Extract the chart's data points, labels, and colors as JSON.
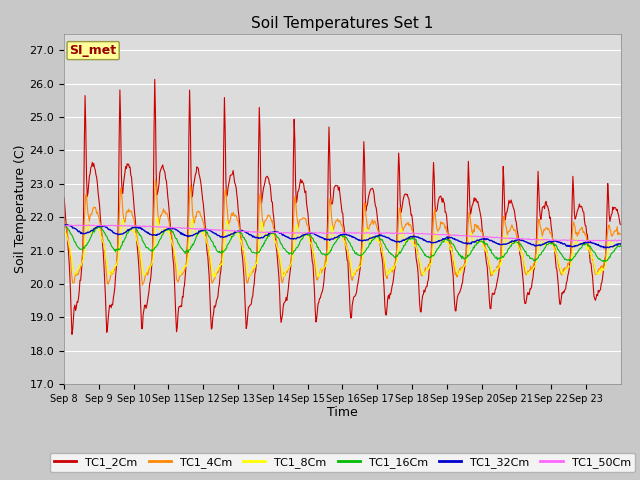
{
  "title": "Soil Temperatures Set 1",
  "xlabel": "Time",
  "ylabel": "Soil Temperature (C)",
  "ylim": [
    17.0,
    27.5
  ],
  "yticks": [
    17.0,
    18.0,
    19.0,
    20.0,
    21.0,
    22.0,
    23.0,
    24.0,
    25.0,
    26.0,
    27.0
  ],
  "fig_bg": "#c8c8c8",
  "plot_bg": "#dcdcdc",
  "series": {
    "TC1_2Cm": {
      "color": "#cc0000",
      "lw": 0.8
    },
    "TC1_4Cm": {
      "color": "#ff8800",
      "lw": 0.8
    },
    "TC1_8Cm": {
      "color": "#ffff00",
      "lw": 0.8
    },
    "TC1_16Cm": {
      "color": "#00bb00",
      "lw": 0.8
    },
    "TC1_32Cm": {
      "color": "#0000cc",
      "lw": 1.0
    },
    "TC1_50Cm": {
      "color": "#ff66ff",
      "lw": 0.8
    }
  },
  "annotation": {
    "text": "SI_met",
    "fontsize": 9,
    "color": "#990000",
    "bg": "#ffff99",
    "border": "#999944"
  },
  "xtick_labels": [
    "Sep 8",
    "Sep 9",
    "Sep 10",
    "Sep 11",
    "Sep 12",
    "Sep 13",
    "Sep 14",
    "Sep 15",
    "Sep 16",
    "Sep 17",
    "Sep 18",
    "Sep 19",
    "Sep 20",
    "Sep 21",
    "Sep 22",
    "Sep 23"
  ],
  "num_days": 16,
  "points_per_day": 48
}
